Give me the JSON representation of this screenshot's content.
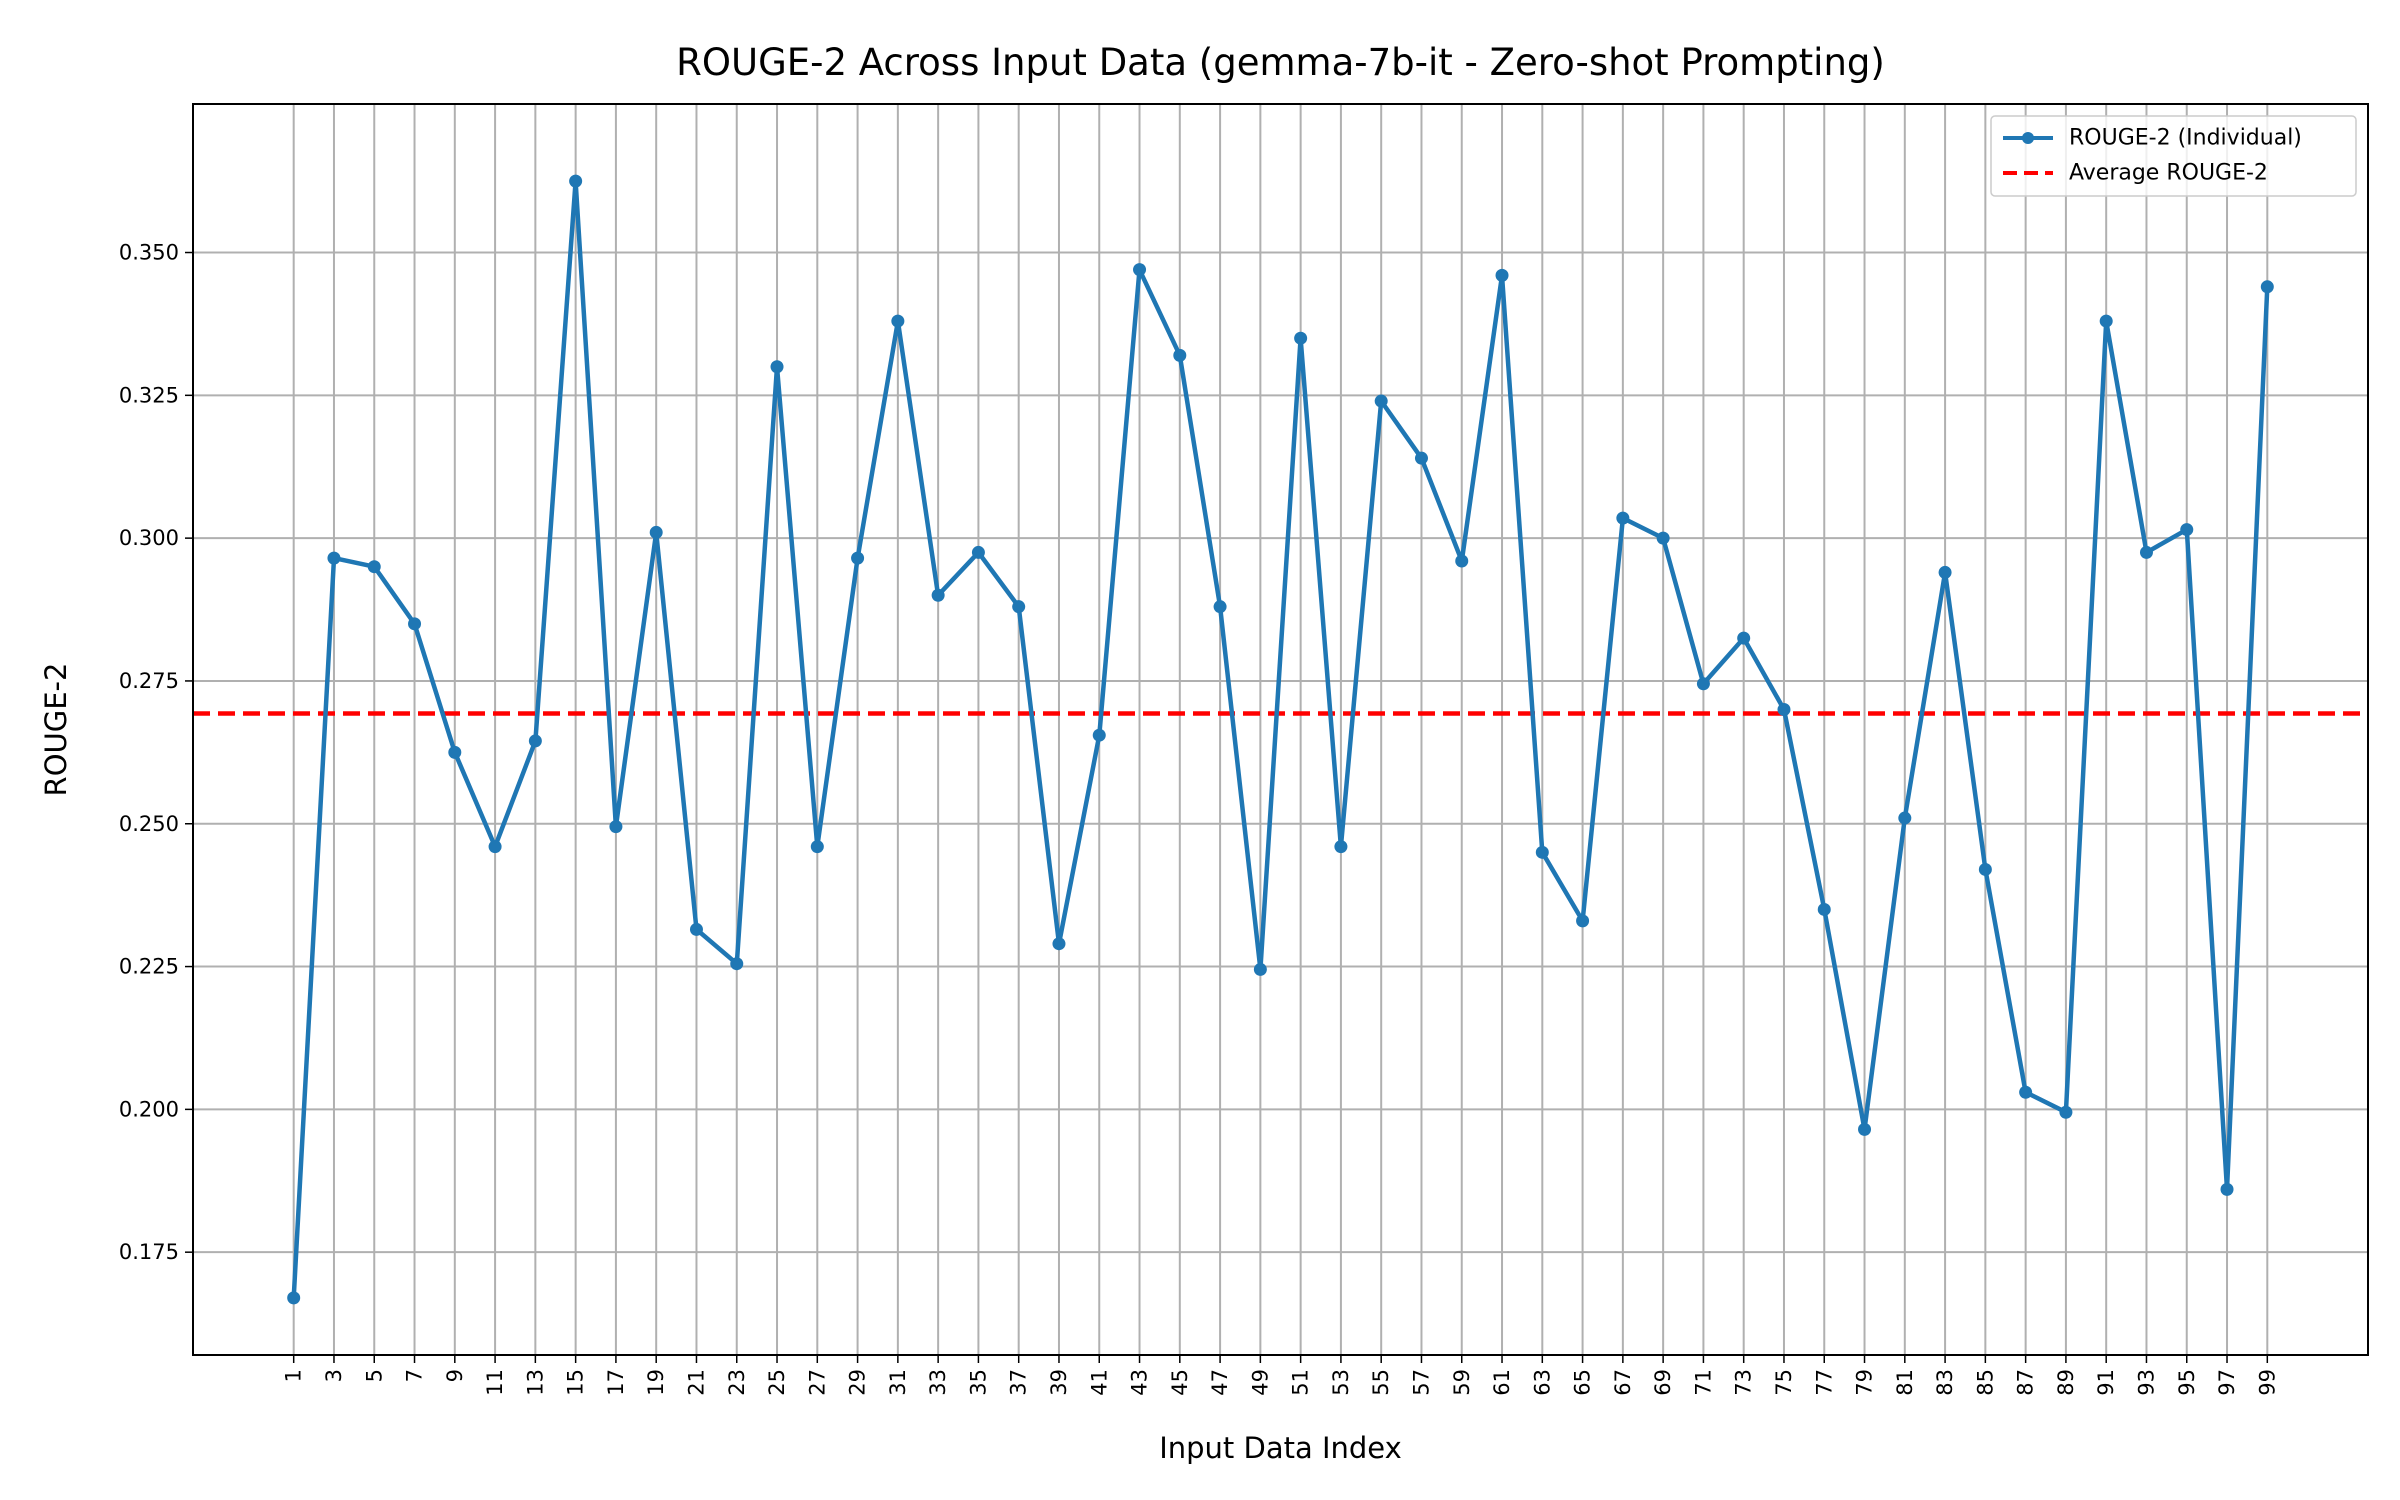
{
  "chart_data": {
    "type": "line",
    "title": "ROUGE-2 Across Input Data (gemma-7b-it - Zero-shot Prompting)",
    "xlabel": "Input Data Index",
    "ylabel": "ROUGE-2",
    "x": [
      1,
      3,
      5,
      7,
      9,
      11,
      13,
      15,
      17,
      19,
      21,
      23,
      25,
      27,
      29,
      31,
      33,
      35,
      37,
      39,
      41,
      43,
      45,
      47,
      49,
      51,
      53,
      55,
      57,
      59,
      61,
      63,
      65,
      67,
      69,
      71,
      73,
      75,
      77,
      79,
      81,
      83,
      85,
      87,
      89,
      91,
      93,
      95,
      97,
      99
    ],
    "x_ticks": [
      "1",
      "3",
      "5",
      "7",
      "9",
      "11",
      "13",
      "15",
      "17",
      "19",
      "21",
      "23",
      "25",
      "27",
      "29",
      "31",
      "33",
      "35",
      "37",
      "39",
      "41",
      "43",
      "45",
      "47",
      "49",
      "51",
      "53",
      "55",
      "57",
      "59",
      "61",
      "63",
      "65",
      "67",
      "69",
      "71",
      "73",
      "75",
      "77",
      "79",
      "81",
      "83",
      "85",
      "87",
      "89",
      "91",
      "93",
      "95",
      "97",
      "99"
    ],
    "xlim": [
      -4,
      104
    ],
    "ylim": [
      0.157,
      0.376
    ],
    "y_ticks": [
      0.175,
      0.2,
      0.225,
      0.25,
      0.275,
      0.3,
      0.325,
      0.35
    ],
    "y_tick_labels": [
      "0.175",
      "0.200",
      "0.225",
      "0.250",
      "0.275",
      "0.300",
      "0.325",
      "0.350"
    ],
    "grid": true,
    "legend_position": "top-right",
    "series": [
      {
        "name": "ROUGE-2 (Individual)",
        "color": "#1f77b4",
        "style": "solid-with-markers",
        "values": [
          0.167,
          0.2965,
          0.295,
          0.285,
          0.2625,
          0.246,
          0.2645,
          0.3625,
          0.2495,
          0.301,
          0.2315,
          0.2255,
          0.33,
          0.246,
          0.2965,
          0.338,
          0.29,
          0.2975,
          0.288,
          0.229,
          0.2655,
          0.347,
          0.332,
          0.288,
          0.2245,
          0.335,
          0.246,
          0.324,
          0.314,
          0.296,
          0.346,
          0.245,
          0.233,
          0.3035,
          0.3,
          0.2745,
          0.2825,
          0.27,
          0.235,
          0.1965,
          0.251,
          0.294,
          0.242,
          0.203,
          0.1995,
          0.338,
          0.2975,
          0.3015,
          0.186,
          0.344
        ]
      }
    ],
    "reference_lines": [
      {
        "name": "Average ROUGE-2",
        "value": 0.2693,
        "color": "#ff0000",
        "style": "dashed"
      }
    ]
  }
}
